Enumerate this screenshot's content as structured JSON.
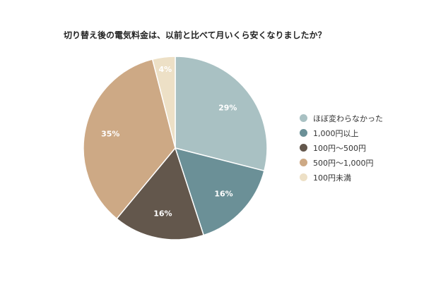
{
  "chart_data": {
    "type": "pie",
    "title": "切り替え後の電気料金は、以前と比べて月いくら安くなりましたか？",
    "legend_position": "right",
    "slices": [
      {
        "label": "ほぼ変わらなかった",
        "value": 29,
        "display": "29%",
        "color": "#a9c1c3"
      },
      {
        "label": "1,000円以上",
        "value": 16,
        "display": "16%",
        "color": "#6b9097"
      },
      {
        "label": "100円～500円",
        "value": 16,
        "display": "16%",
        "color": "#63574c"
      },
      {
        "label": "500円～1,000円",
        "value": 35,
        "display": "35%",
        "color": "#cda985"
      },
      {
        "label": "100円未満",
        "value": 4,
        "display": "4%",
        "color": "#ede0c6"
      }
    ]
  }
}
